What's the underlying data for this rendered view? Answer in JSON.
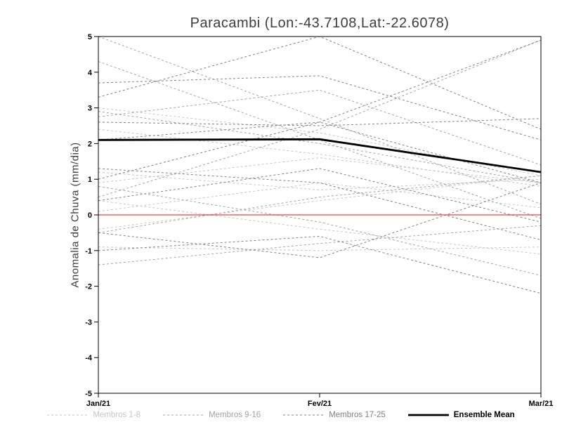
{
  "chart_data": {
    "type": "line",
    "title": "Paracambi (Lon:-43.7108,Lat:-22.6078)",
    "ylabel": "Anomalia de Chuva (mm/dia)",
    "x_categories": [
      "Jan/21",
      "Fev/21",
      "Mar/21"
    ],
    "ylim": [
      -5,
      5
    ],
    "yticks": [
      -5,
      -4,
      -3,
      -2,
      -1,
      0,
      1,
      2,
      3,
      4,
      5
    ],
    "grid": false,
    "legend_position": "bottom",
    "zero_line": {
      "name": "zero-reference",
      "color": "#f04040",
      "values": [
        0,
        0,
        0
      ]
    },
    "ensemble_mean": {
      "name": "Ensemble Mean",
      "color": "#000000",
      "values": [
        2.1,
        2.12,
        1.2
      ]
    },
    "member_groups": [
      {
        "name": "Membros 1-8",
        "color": "#c6c6c6",
        "members": [
          {
            "id": "m1",
            "values": [
              3.0,
              2.3,
              1.1
            ]
          },
          {
            "id": "m2",
            "values": [
              1.2,
              0.7,
              1.0
            ]
          },
          {
            "id": "m3",
            "values": [
              0.9,
              1.6,
              0.9
            ]
          },
          {
            "id": "m4",
            "values": [
              -0.4,
              0.4,
              1.1
            ]
          },
          {
            "id": "m5",
            "values": [
              -0.9,
              -1.0,
              -0.9
            ]
          },
          {
            "id": "m6",
            "values": [
              0.4,
              -0.4,
              -1.1
            ]
          },
          {
            "id": "m7",
            "values": [
              2.4,
              1.7,
              0.8
            ]
          },
          {
            "id": "m8",
            "values": [
              0.1,
              0.9,
              0.2
            ]
          }
        ]
      },
      {
        "name": "Membros 9-16",
        "color": "#a4a4a4",
        "members": [
          {
            "id": "m9",
            "values": [
              5.0,
              2.7,
              0.3
            ]
          },
          {
            "id": "m10",
            "values": [
              4.3,
              2.1,
              -0.1
            ]
          },
          {
            "id": "m11",
            "values": [
              2.75,
              3.5,
              1.4
            ]
          },
          {
            "id": "m12",
            "values": [
              0.5,
              2.4,
              4.9
            ]
          },
          {
            "id": "m13",
            "values": [
              -0.5,
              0.5,
              1.1
            ]
          },
          {
            "id": "m14",
            "values": [
              -1.4,
              -0.8,
              -0.3
            ]
          },
          {
            "id": "m15",
            "values": [
              0.8,
              -0.2,
              -1.7
            ]
          },
          {
            "id": "m16",
            "values": [
              2.9,
              2.0,
              0.9
            ]
          }
        ]
      },
      {
        "name": "Membros 17-25",
        "color": "#818181",
        "members": [
          {
            "id": "m17",
            "values": [
              3.7,
              3.9,
              2.1
            ]
          },
          {
            "id": "m18",
            "values": [
              2.6,
              2.5,
              2.7
            ]
          },
          {
            "id": "m19",
            "values": [
              1.0,
              2.6,
              4.9
            ]
          },
          {
            "id": "m20",
            "values": [
              3.3,
              5.0,
              2.4
            ]
          },
          {
            "id": "m21",
            "values": [
              0.4,
              1.3,
              -0.2
            ]
          },
          {
            "id": "m22",
            "values": [
              -1.0,
              -0.6,
              -2.2
            ]
          },
          {
            "id": "m23",
            "values": [
              2.1,
              2.6,
              0.9
            ]
          },
          {
            "id": "m24",
            "values": [
              -0.5,
              -1.2,
              0.9
            ]
          },
          {
            "id": "m25",
            "values": [
              1.3,
              0.9,
              -0.7
            ]
          }
        ]
      }
    ],
    "legend": [
      {
        "label": "Membros 1-8",
        "color": "#c6c6c6",
        "style": "dashed",
        "width": 1
      },
      {
        "label": "Membros 9-16",
        "color": "#a4a4a4",
        "style": "dashed",
        "width": 1
      },
      {
        "label": "Membros 17-25",
        "color": "#818181",
        "style": "dashed",
        "width": 1
      },
      {
        "label": "Ensemble Mean",
        "color": "#000000",
        "style": "solid",
        "width": 2.8
      }
    ]
  }
}
